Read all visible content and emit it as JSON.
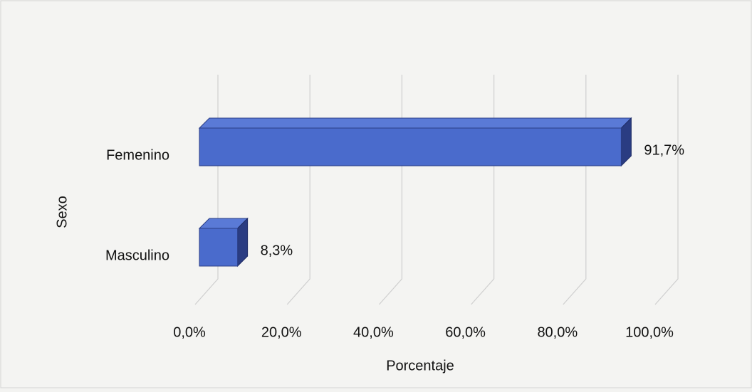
{
  "chart_data": {
    "type": "bar3d_horizontal",
    "categories": [
      "Femenino",
      "Masculino"
    ],
    "values": [
      91.7,
      8.3
    ],
    "value_labels": [
      "91,7%",
      "8,3%"
    ],
    "color": "#4a6bcc",
    "xlim": [
      0,
      100
    ],
    "xticks": [
      {
        "value": 0,
        "label": "0,0%"
      },
      {
        "value": 20,
        "label": "20,0%"
      },
      {
        "value": 40,
        "label": "40,0%"
      },
      {
        "value": 60,
        "label": "60,0%"
      },
      {
        "value": 80,
        "label": "80,0%"
      },
      {
        "value": 100,
        "label": "100,0%"
      }
    ],
    "xlabel": "Porcentaje",
    "ylabel": "Sexo",
    "grid": true
  }
}
